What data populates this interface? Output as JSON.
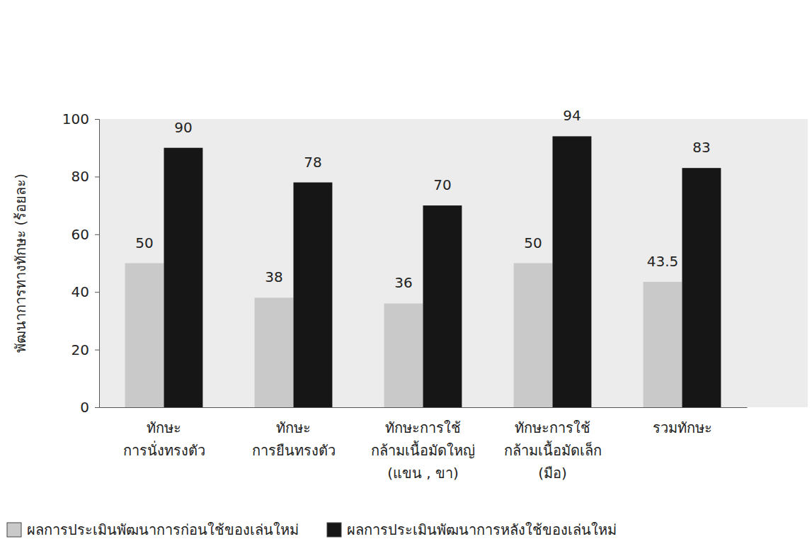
{
  "chart_data": {
    "type": "bar",
    "y_label": "พัฒนาการทางทักษะ (ร้อยละ)",
    "categories": [
      "ทักษะ\nการนั่งทรงตัว",
      "ทักษะ\nการยืนทรงตัว",
      "ทักษะการใช้\nกล้ามเนื้อมัดใหญ่\n(แขน , ขา)",
      "ทักษะการใช้\nกล้ามเนื้อมัดเล็ก\n(มือ)",
      "รวมทักษะ"
    ],
    "series": [
      {
        "name": "ผลการประเมินพัฒนาการก่อนใช้ของเล่นใหม่",
        "color": "#c9c9c9",
        "values": [
          50,
          38,
          36,
          50,
          43.5
        ]
      },
      {
        "name": "ผลการประเมินพัฒนาการหลังใช้ของเล่นใหม่",
        "color": "#161616",
        "values": [
          90,
          78,
          70,
          94,
          83
        ]
      }
    ],
    "ylim": [
      0,
      100
    ],
    "yticks": [
      0,
      20,
      40,
      60,
      80,
      100
    ],
    "grid": false,
    "legend": "bottom",
    "data_labels": true
  }
}
